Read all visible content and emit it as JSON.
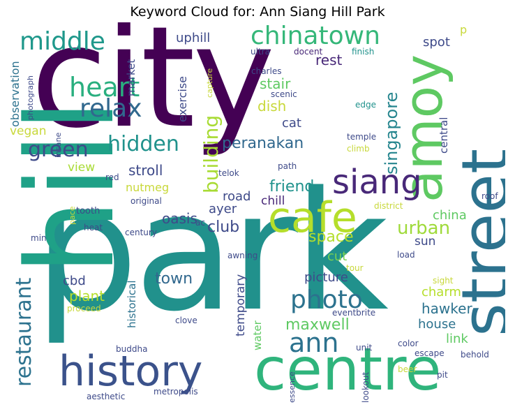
{
  "title": "Keyword Cloud for: Ann Siang Hill Park",
  "palette": {
    "dark_purple": "#440154",
    "indigo": "#3b528b",
    "teal": "#21918c",
    "green": "#5ec962",
    "yellow": "#c8d83a"
  },
  "words": {
    "city": "city",
    "park": "park",
    "hill": "hill",
    "street": "street",
    "amoy": "amoy",
    "centre": "centre",
    "history": "history",
    "cafe": "cafe",
    "siang": "siang",
    "chinatown": "chinatown",
    "middle": "middle",
    "heart": "heart",
    "relax": "relax",
    "hidden": "hidden",
    "green": "green",
    "building": "building",
    "singapore": "singapore",
    "photo": "photo",
    "ann": "ann",
    "restaurant": "restaurant",
    "urban": "urban",
    "maxwell": "maxwell",
    "peranakan": "peranakan",
    "friend": "friend",
    "club": "club",
    "space": "space",
    "hawker": "hawker",
    "town": "town",
    "plant": "plant",
    "stroll": "stroll",
    "dish": "dish",
    "cat": "cat",
    "uphill": "uphill",
    "spot": "spot",
    "rest": "rest",
    "stair": "stair",
    "observation": "observation",
    "exercise": "exercise",
    "market": "market",
    "vegan": "vegan",
    "view": "view",
    "nutmeg": "nutmeg",
    "oasis": "oasis",
    "road": "road",
    "ayer": "ayer",
    "chill": "chill",
    "china": "china",
    "sun": "sun",
    "cut": "cut",
    "picture": "picture",
    "charm": "charm",
    "house": "house",
    "link": "link",
    "cbd": "cbd",
    "historical": "historical",
    "temporary": "temporary",
    "water": "water",
    "central": "central",
    "eventbrite": "eventbrite",
    "p": "p",
    "ultra": "ultra",
    "docent": "docent",
    "finish": "finish",
    "charles": "charles",
    "scenic": "scenic",
    "edge": "edge",
    "temple": "temple",
    "climb": "climb",
    "photograph": "photograph",
    "insane": "insane",
    "capture": "capture",
    "telok": "telok",
    "path": "path",
    "red": "red",
    "original": "original",
    "tooth": "tooth",
    "pace": "pace",
    "heat": "heat",
    "ac": "ac",
    "century": "century",
    "min": "min",
    "awning": "awning",
    "district": "district",
    "roof": "roof",
    "load": "load",
    "tour": "tour",
    "sight": "sight",
    "proceed": "proceed",
    "clove": "clove",
    "buddha": "buddha",
    "unit": "unit",
    "color": "color",
    "escape": "escape",
    "behold": "behold",
    "beer": "beer",
    "pit": "pit",
    "lookout": "lookout",
    "essence": "essence",
    "metropolis": "metropolis",
    "aesthetic": "aesthetic"
  }
}
